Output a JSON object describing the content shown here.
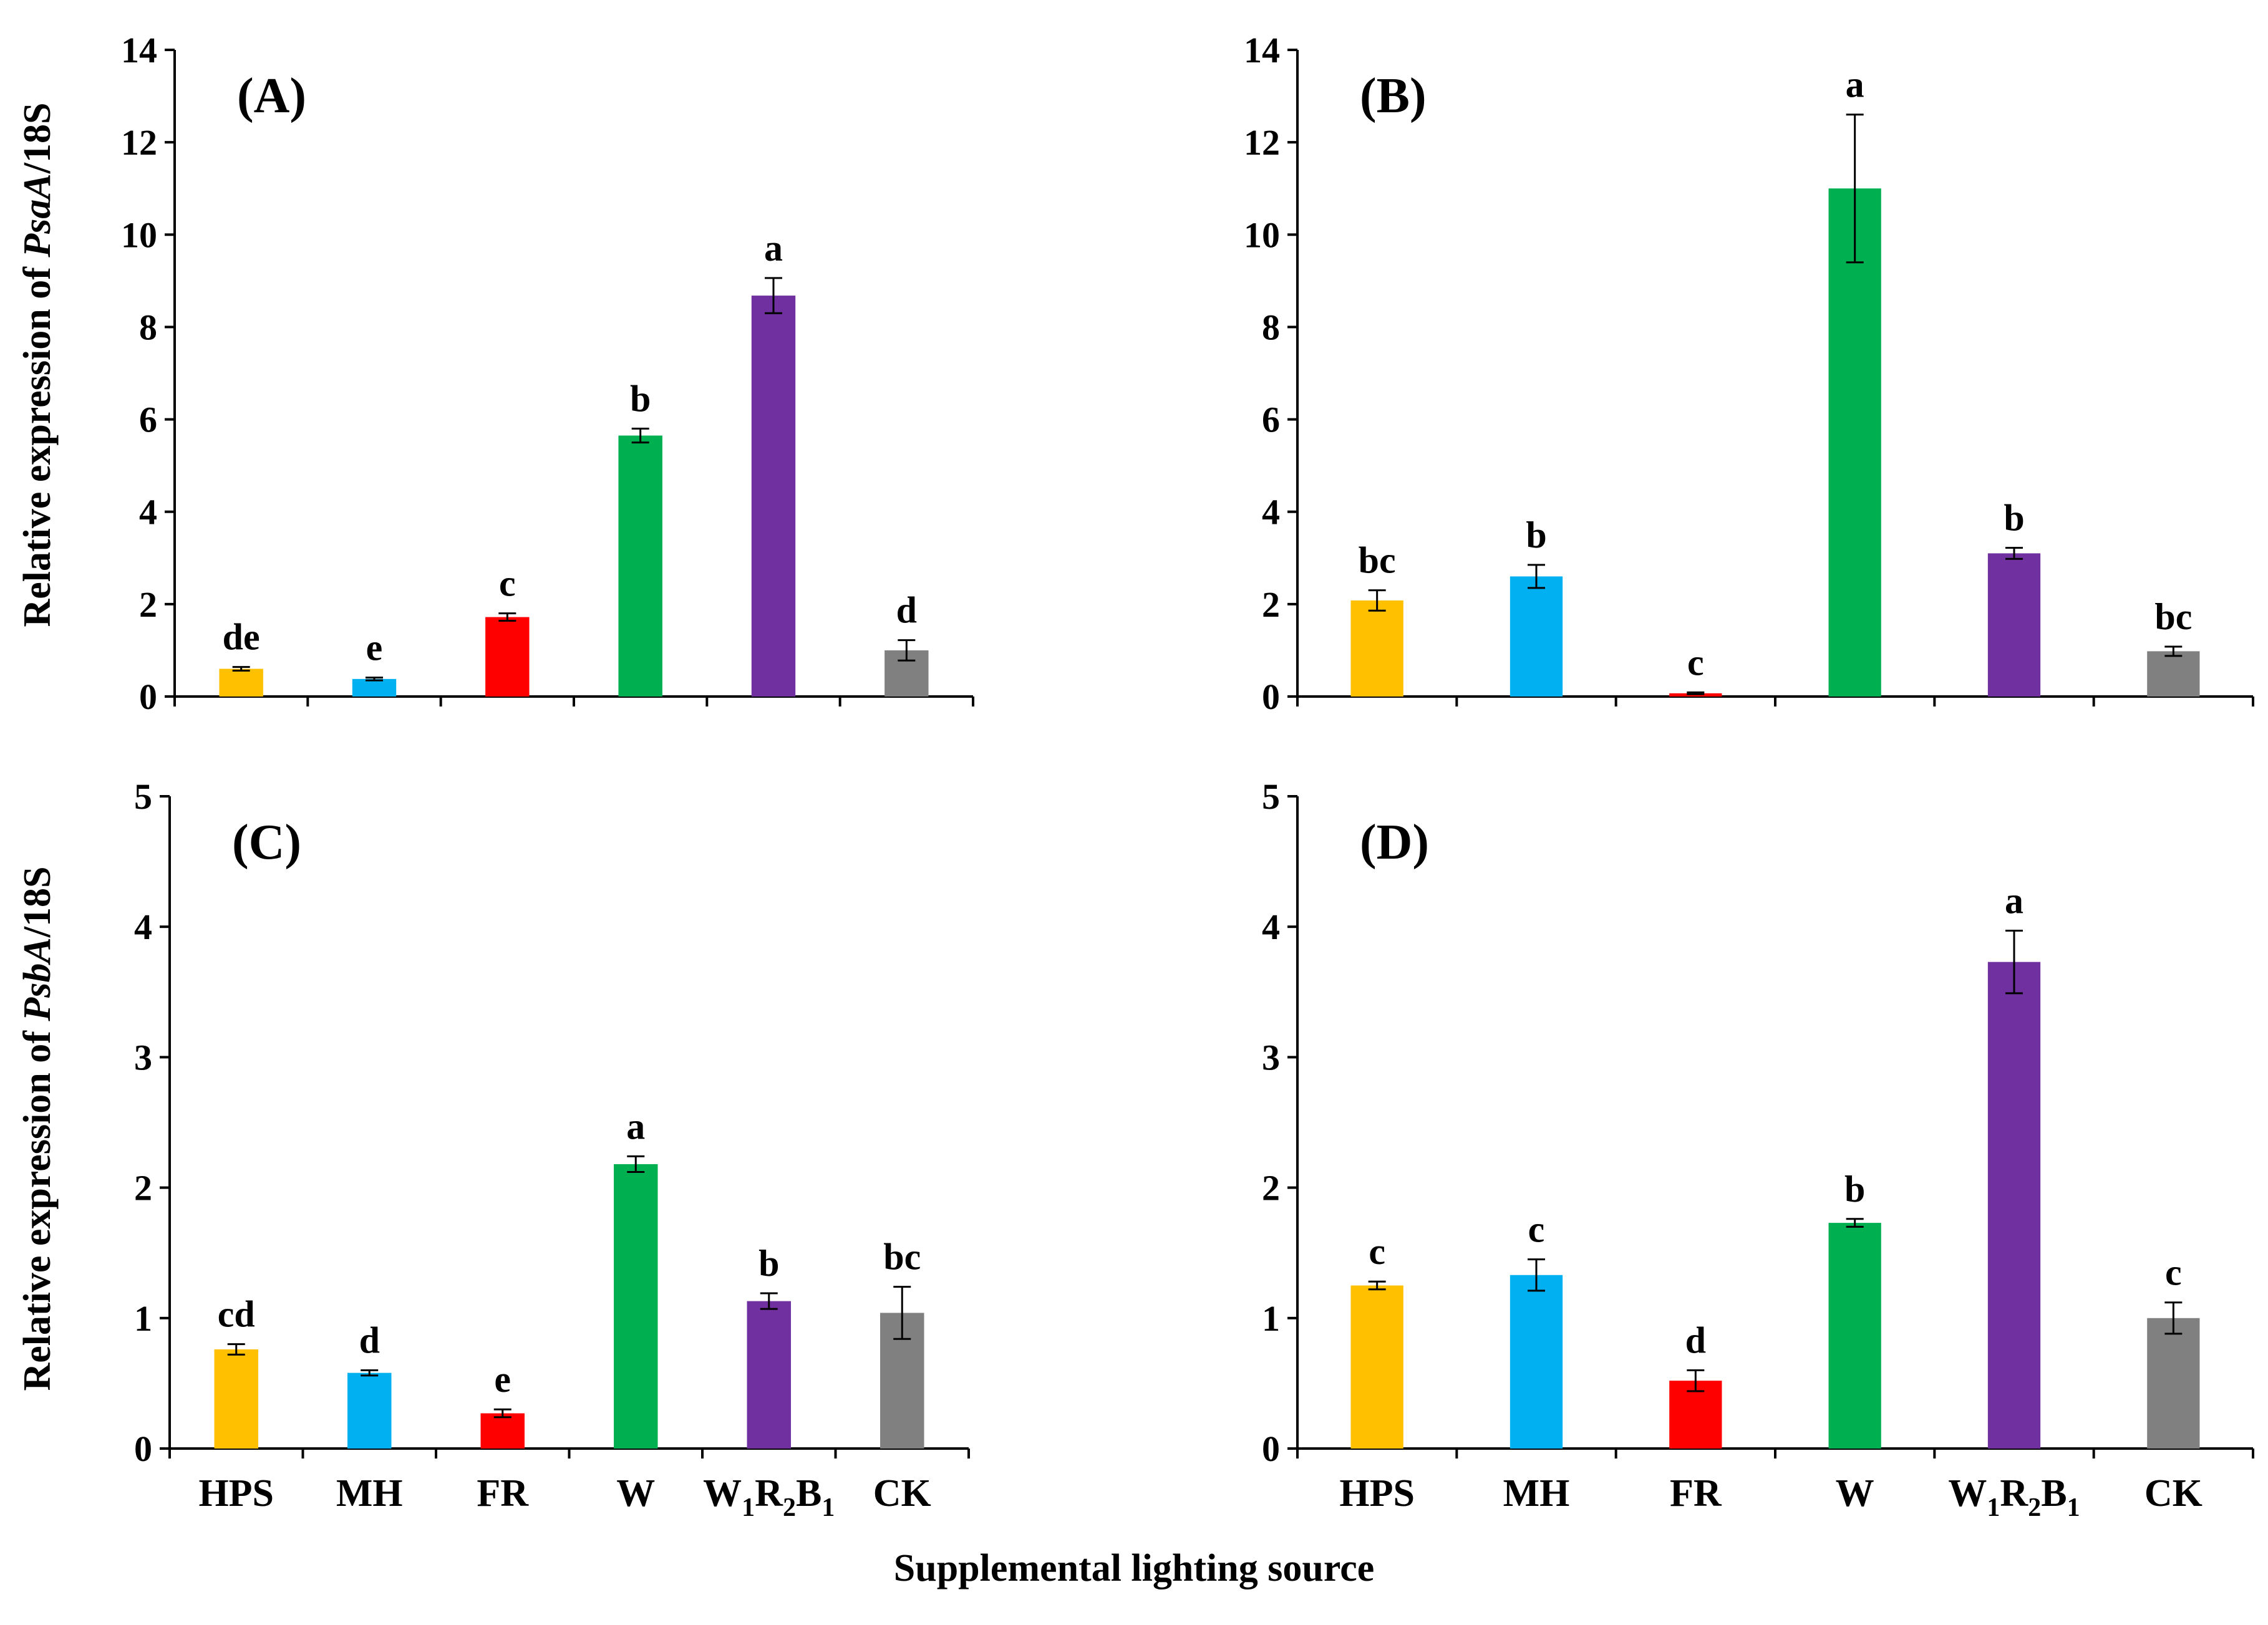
{
  "figure": {
    "xlabel": "Supplemental lighting source",
    "ylabel_top": {
      "prefix": "Relative expression of ",
      "gene": "PsaA",
      "suffix": "/18S"
    },
    "ylabel_bottom": {
      "prefix": "Relative expression of ",
      "gene": "PsbA",
      "suffix": "/18S"
    }
  },
  "categories": [
    {
      "base": "HPS",
      "sub": []
    },
    {
      "base": "MH",
      "sub": []
    },
    {
      "base": "FR",
      "sub": []
    },
    {
      "base": "W",
      "sub": []
    },
    {
      "base": "W",
      "sub": [
        [
          "1",
          "R"
        ],
        [
          "2",
          "B"
        ],
        [
          "1",
          ""
        ]
      ]
    },
    {
      "base": "CK",
      "sub": []
    }
  ],
  "colors": [
    "#FFC000",
    "#00B0F0",
    "#FF0000",
    "#00B050",
    "#7030A0",
    "#808080"
  ],
  "chart_data": [
    {
      "type": "bar",
      "panel": "(A)",
      "gene": "PsaA",
      "categories": [
        "HPS",
        "MH",
        "FR",
        "W",
        "W1R2B1",
        "CK"
      ],
      "values": [
        0.6,
        0.38,
        1.72,
        5.65,
        8.68,
        1.0
      ],
      "errors": [
        0.04,
        0.03,
        0.08,
        0.15,
        0.38,
        0.22
      ],
      "letters": [
        "de",
        "e",
        "c",
        "b",
        "a",
        "d"
      ],
      "ylim": [
        0,
        14
      ],
      "yticks": [
        0,
        2,
        4,
        6,
        8,
        10,
        12,
        14
      ]
    },
    {
      "type": "bar",
      "panel": "(B)",
      "gene": "PsaA",
      "categories": [
        "HPS",
        "MH",
        "FR",
        "W",
        "W1R2B1",
        "CK"
      ],
      "values": [
        2.08,
        2.6,
        0.07,
        11.0,
        3.1,
        0.98
      ],
      "errors": [
        0.22,
        0.25,
        0.02,
        1.6,
        0.12,
        0.1
      ],
      "letters": [
        "bc",
        "b",
        "c",
        "a",
        "b",
        "bc"
      ],
      "ylim": [
        0,
        14
      ],
      "yticks": [
        0,
        2,
        4,
        6,
        8,
        10,
        12,
        14
      ]
    },
    {
      "type": "bar",
      "panel": "(C)",
      "gene": "PsbA",
      "categories": [
        "HPS",
        "MH",
        "FR",
        "W",
        "W1R2B1",
        "CK"
      ],
      "values": [
        0.76,
        0.58,
        0.27,
        2.18,
        1.13,
        1.04
      ],
      "errors": [
        0.04,
        0.02,
        0.03,
        0.06,
        0.06,
        0.2
      ],
      "letters": [
        "cd",
        "d",
        "e",
        "a",
        "b",
        "bc"
      ],
      "ylim": [
        0,
        5
      ],
      "yticks": [
        0,
        1,
        2,
        3,
        4,
        5
      ]
    },
    {
      "type": "bar",
      "panel": "(D)",
      "gene": "PsbA",
      "categories": [
        "HPS",
        "MH",
        "FR",
        "W",
        "W1R2B1",
        "CK"
      ],
      "values": [
        1.25,
        1.33,
        0.52,
        1.73,
        3.73,
        1.0
      ],
      "errors": [
        0.03,
        0.12,
        0.08,
        0.03,
        0.24,
        0.12
      ],
      "letters": [
        "c",
        "c",
        "d",
        "b",
        "a",
        "c"
      ],
      "ylim": [
        0,
        5
      ],
      "yticks": [
        0,
        1,
        2,
        3,
        4,
        5
      ]
    }
  ]
}
